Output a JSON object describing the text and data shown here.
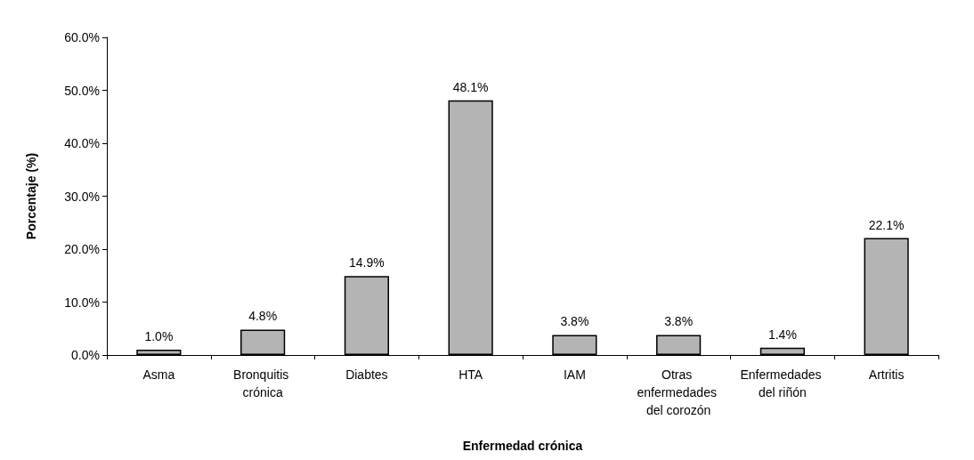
{
  "chart_data": {
    "type": "bar",
    "xlabel": "Enfermedad crónica",
    "ylabel": "Porcentaje (%)",
    "categories": [
      "Asma",
      "Bronquitis crónica",
      "Diabtes",
      "HTA",
      "IAM",
      "Otras enfermedades del corozón",
      "Enfermedades del riñón",
      "Artritis"
    ],
    "values": [
      1.0,
      4.8,
      14.9,
      48.1,
      3.8,
      3.8,
      1.4,
      22.1
    ],
    "value_labels": [
      "1.0%",
      "4.8%",
      "14.9%",
      "48.1%",
      "3.8%",
      "3.8%",
      "1.4%",
      "22.1%"
    ],
    "color": "#b4b4b4",
    "ylim": [
      0,
      60
    ],
    "yticks": [
      {
        "value": 0,
        "label": "0.0%"
      },
      {
        "value": 10,
        "label": "10.0%"
      },
      {
        "value": 20,
        "label": "20.0%"
      },
      {
        "value": 30,
        "label": "30.0%"
      },
      {
        "value": 40,
        "label": "40.0%"
      },
      {
        "value": 50,
        "label": "50.0%"
      },
      {
        "value": 60,
        "label": "60.0%"
      }
    ],
    "grid": false
  }
}
